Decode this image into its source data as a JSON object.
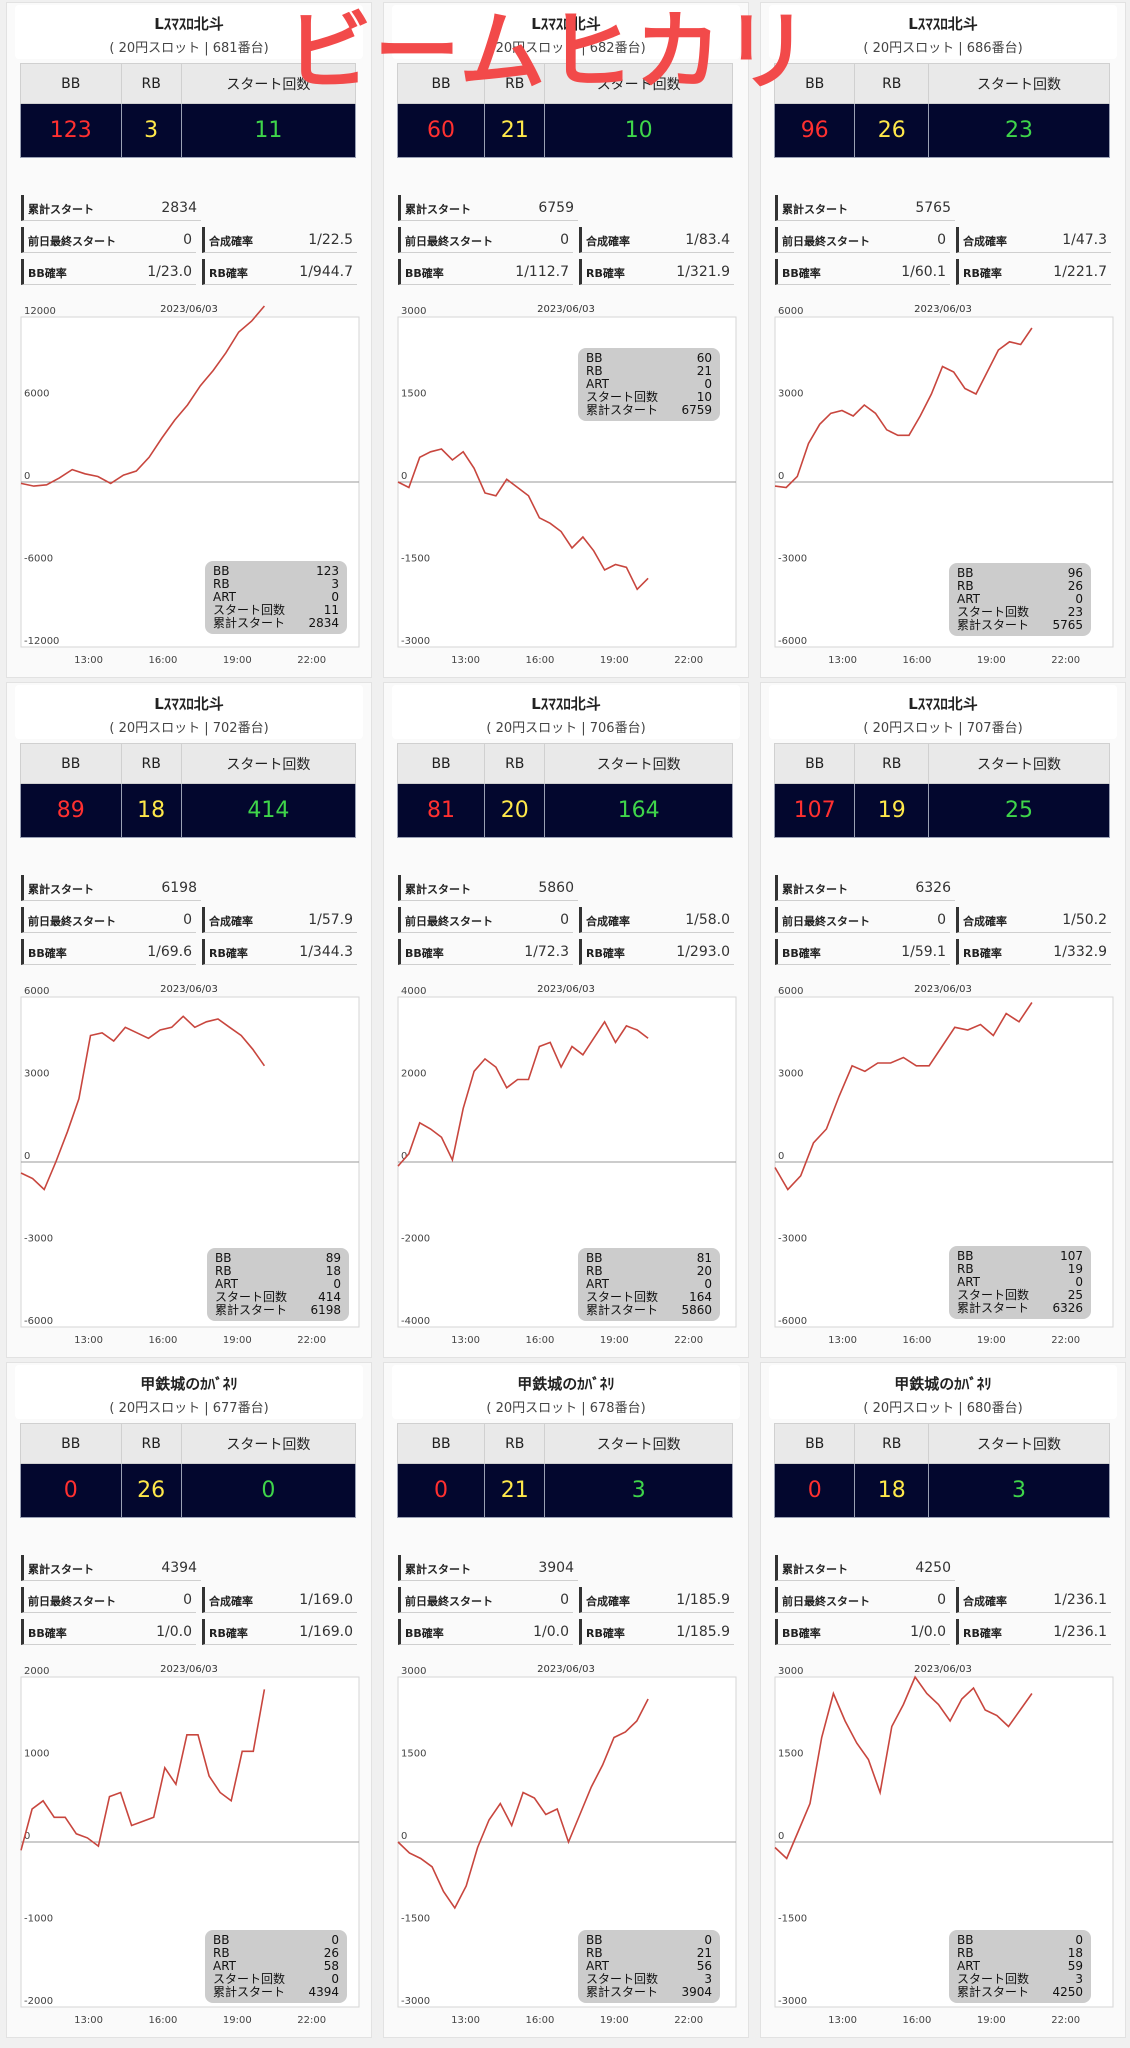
{
  "overlay_title": "ビームヒカリ",
  "labels": {
    "bb": "BB",
    "rb": "RB",
    "start": "スタート回数",
    "cum_start": "累計スタート",
    "prev_last_start": "前日最終スタート",
    "combined_rate": "合成確率",
    "bb_rate": "BB確率",
    "rb_rate": "RB確率",
    "art": "ART",
    "box_start": "スタート回数",
    "box_cum": "累計スタート"
  },
  "panels": [
    {
      "name": "Lｽﾏｽﾛ北斗",
      "sub": "( 20円スロット | 681番台)",
      "bb": "123",
      "rb": "3",
      "start": "11",
      "cum_start": "2834",
      "prev_last_start": "0",
      "combined_rate": "1/22.5",
      "bb_rate": "1/23.0",
      "rb_rate": "1/944.7",
      "date": "2023/06/03",
      "box": {
        "bb": "123",
        "rb": "3",
        "art": "0",
        "start": "11",
        "cum": "2834"
      }
    },
    {
      "name": "Lｽﾏｽﾛ北斗",
      "sub": "( 20円スロット | 682番台)",
      "bb": "60",
      "rb": "21",
      "start": "10",
      "cum_start": "6759",
      "prev_last_start": "0",
      "combined_rate": "1/83.4",
      "bb_rate": "1/112.7",
      "rb_rate": "1/321.9",
      "date": "2023/06/03",
      "box": {
        "bb": "60",
        "rb": "21",
        "art": "0",
        "start": "10",
        "cum": "6759"
      }
    },
    {
      "name": "Lｽﾏｽﾛ北斗",
      "sub": "( 20円スロット | 686番台)",
      "bb": "96",
      "rb": "26",
      "start": "23",
      "cum_start": "5765",
      "prev_last_start": "0",
      "combined_rate": "1/47.3",
      "bb_rate": "1/60.1",
      "rb_rate": "1/221.7",
      "date": "2023/06/03",
      "box": {
        "bb": "96",
        "rb": "26",
        "art": "0",
        "start": "23",
        "cum": "5765"
      }
    },
    {
      "name": "Lｽﾏｽﾛ北斗",
      "sub": "( 20円スロット | 702番台)",
      "bb": "89",
      "rb": "18",
      "start": "414",
      "cum_start": "6198",
      "prev_last_start": "0",
      "combined_rate": "1/57.9",
      "bb_rate": "1/69.6",
      "rb_rate": "1/344.3",
      "date": "2023/06/03",
      "box": {
        "bb": "89",
        "rb": "18",
        "art": "0",
        "start": "414",
        "cum": "6198"
      }
    },
    {
      "name": "Lｽﾏｽﾛ北斗",
      "sub": "( 20円スロット | 706番台)",
      "bb": "81",
      "rb": "20",
      "start": "164",
      "cum_start": "5860",
      "prev_last_start": "0",
      "combined_rate": "1/58.0",
      "bb_rate": "1/72.3",
      "rb_rate": "1/293.0",
      "date": "2023/06/03",
      "box": {
        "bb": "81",
        "rb": "20",
        "art": "0",
        "start": "164",
        "cum": "5860"
      }
    },
    {
      "name": "Lｽﾏｽﾛ北斗",
      "sub": "( 20円スロット | 707番台)",
      "bb": "107",
      "rb": "19",
      "start": "25",
      "cum_start": "6326",
      "prev_last_start": "0",
      "combined_rate": "1/50.2",
      "bb_rate": "1/59.1",
      "rb_rate": "1/332.9",
      "date": "2023/06/03",
      "box": {
        "bb": "107",
        "rb": "19",
        "art": "0",
        "start": "25",
        "cum": "6326"
      }
    },
    {
      "name": "甲鉄城のｶﾊﾞﾈﾘ",
      "sub": "( 20円スロット | 677番台)",
      "bb": "0",
      "rb": "26",
      "start": "0",
      "cum_start": "4394",
      "prev_last_start": "0",
      "combined_rate": "1/169.0",
      "bb_rate": "1/0.0",
      "rb_rate": "1/169.0",
      "date": "2023/06/03",
      "box": {
        "bb": "0",
        "rb": "26",
        "art": "58",
        "start": "0",
        "cum": "4394"
      }
    },
    {
      "name": "甲鉄城のｶﾊﾞﾈﾘ",
      "sub": "( 20円スロット | 678番台)",
      "bb": "0",
      "rb": "21",
      "start": "3",
      "cum_start": "3904",
      "prev_last_start": "0",
      "combined_rate": "1/185.9",
      "bb_rate": "1/0.0",
      "rb_rate": "1/185.9",
      "date": "2023/06/03",
      "box": {
        "bb": "0",
        "rb": "21",
        "art": "56",
        "start": "3",
        "cum": "3904"
      }
    },
    {
      "name": "甲鉄城のｶﾊﾞﾈﾘ",
      "sub": "( 20円スロット | 680番台)",
      "bb": "0",
      "rb": "18",
      "start": "3",
      "cum_start": "4250",
      "prev_last_start": "0",
      "combined_rate": "1/236.1",
      "bb_rate": "1/0.0",
      "rb_rate": "1/236.1",
      "date": "2023/06/03",
      "box": {
        "bb": "0",
        "rb": "18",
        "art": "59",
        "start": "3",
        "cum": "4250"
      }
    }
  ],
  "chart_data": [
    {
      "type": "line",
      "title": "2023/06/03",
      "x_ticks": [
        "13:00",
        "16:00",
        "19:00",
        "22:00"
      ],
      "y_ticks": [
        12000,
        6000,
        0,
        -6000,
        -12000
      ],
      "ylim": [
        -12000,
        12000
      ],
      "grid": "zero-line",
      "series": [
        {
          "values": [
            -100,
            -300,
            -200,
            300,
            900,
            600,
            400,
            -100,
            500,
            800,
            1800,
            3200,
            4500,
            5600,
            7000,
            8100,
            9400,
            10900,
            11700,
            12800
          ]
        }
      ]
    },
    {
      "type": "line",
      "title": "2023/06/03",
      "x_ticks": [
        "13:00",
        "16:00",
        "19:00",
        "22:00"
      ],
      "y_ticks": [
        3000,
        1500,
        0,
        -1500,
        -3000
      ],
      "ylim": [
        -3000,
        3000
      ],
      "grid": "zero-line",
      "series": [
        {
          "values": [
            0,
            -100,
            450,
            550,
            600,
            400,
            550,
            250,
            -200,
            -250,
            50,
            -100,
            -250,
            -650,
            -750,
            -900,
            -1200,
            -1000,
            -1250,
            -1600,
            -1500,
            -1550,
            -1950,
            -1750
          ]
        }
      ]
    },
    {
      "type": "line",
      "title": "2023/06/03",
      "x_ticks": [
        "13:00",
        "16:00",
        "19:00",
        "22:00"
      ],
      "y_ticks": [
        6000,
        3000,
        0,
        -3000,
        -6000
      ],
      "ylim": [
        -6000,
        6000
      ],
      "grid": "zero-line",
      "series": [
        {
          "values": [
            -150,
            -200,
            200,
            1400,
            2100,
            2500,
            2600,
            2400,
            2800,
            2500,
            1900,
            1700,
            1700,
            2400,
            3200,
            4200,
            4000,
            3400,
            3200,
            4000,
            4800,
            5100,
            5000,
            5600
          ]
        }
      ]
    },
    {
      "type": "line",
      "title": "2023/06/03",
      "x_ticks": [
        "13:00",
        "16:00",
        "19:00",
        "22:00"
      ],
      "y_ticks": [
        6000,
        3000,
        0,
        -3000,
        -6000
      ],
      "ylim": [
        -6000,
        6000
      ],
      "grid": "zero-line",
      "series": [
        {
          "values": [
            -400,
            -600,
            -1000,
            0,
            1100,
            2300,
            4600,
            4700,
            4400,
            4900,
            4700,
            4500,
            4800,
            4900,
            5300,
            4900,
            5100,
            5200,
            4900,
            4600,
            4100,
            3500
          ]
        }
      ]
    },
    {
      "type": "line",
      "title": "2023/06/03",
      "x_ticks": [
        "13:00",
        "16:00",
        "19:00",
        "22:00"
      ],
      "y_ticks": [
        4000,
        2000,
        0,
        -2000,
        -4000
      ],
      "ylim": [
        -4000,
        4000
      ],
      "grid": "zero-line",
      "series": [
        {
          "values": [
            -100,
            200,
            950,
            800,
            600,
            50,
            1300,
            2200,
            2500,
            2300,
            1800,
            2000,
            2000,
            2800,
            2900,
            2300,
            2800,
            2600,
            3000,
            3400,
            2900,
            3300,
            3200,
            3000
          ]
        }
      ]
    },
    {
      "type": "line",
      "title": "2023/06/03",
      "x_ticks": [
        "13:00",
        "16:00",
        "19:00",
        "22:00"
      ],
      "y_ticks": [
        6000,
        3000,
        0,
        -3000,
        -6000
      ],
      "ylim": [
        -6000,
        6000
      ],
      "grid": "zero-line",
      "series": [
        {
          "values": [
            -200,
            -1000,
            -500,
            700,
            1200,
            2400,
            3500,
            3300,
            3600,
            3600,
            3800,
            3500,
            3500,
            4200,
            4900,
            4800,
            5000,
            4600,
            5400,
            5100,
            5800
          ]
        }
      ]
    },
    {
      "type": "line",
      "title": "2023/06/03",
      "x_ticks": [
        "13:00",
        "16:00",
        "19:00",
        "22:00"
      ],
      "y_ticks": [
        2000,
        1000,
        0,
        -1000,
        -2000
      ],
      "ylim": [
        -2000,
        2000
      ],
      "grid": "zero-line",
      "series": [
        {
          "values": [
            -100,
            400,
            500,
            300,
            300,
            100,
            50,
            -50,
            550,
            600,
            200,
            250,
            300,
            900,
            700,
            1300,
            1300,
            800,
            600,
            500,
            1100,
            1100,
            1850
          ]
        }
      ]
    },
    {
      "type": "line",
      "title": "2023/06/03",
      "x_ticks": [
        "13:00",
        "16:00",
        "19:00",
        "22:00"
      ],
      "y_ticks": [
        3000,
        1500,
        0,
        -1500,
        -3000
      ],
      "ylim": [
        -3000,
        3000
      ],
      "grid": "zero-line",
      "series": [
        {
          "values": [
            0,
            -200,
            -300,
            -450,
            -900,
            -1200,
            -800,
            -100,
            400,
            700,
            300,
            900,
            800,
            500,
            600,
            0,
            500,
            1000,
            1400,
            1900,
            2000,
            2200,
            2600
          ]
        }
      ]
    },
    {
      "type": "line",
      "title": "2023/06/03",
      "x_ticks": [
        "13:00",
        "16:00",
        "19:00",
        "22:00"
      ],
      "y_ticks": [
        3000,
        1500,
        0,
        -1500,
        -3000
      ],
      "ylim": [
        -3000,
        3000
      ],
      "grid": "zero-line",
      "series": [
        {
          "values": [
            -100,
            -300,
            200,
            700,
            1900,
            2700,
            2200,
            1800,
            1500,
            900,
            2100,
            2500,
            3000,
            2700,
            2500,
            2200,
            2600,
            2800,
            2400,
            2300,
            2100,
            2400,
            2700
          ]
        }
      ]
    }
  ]
}
